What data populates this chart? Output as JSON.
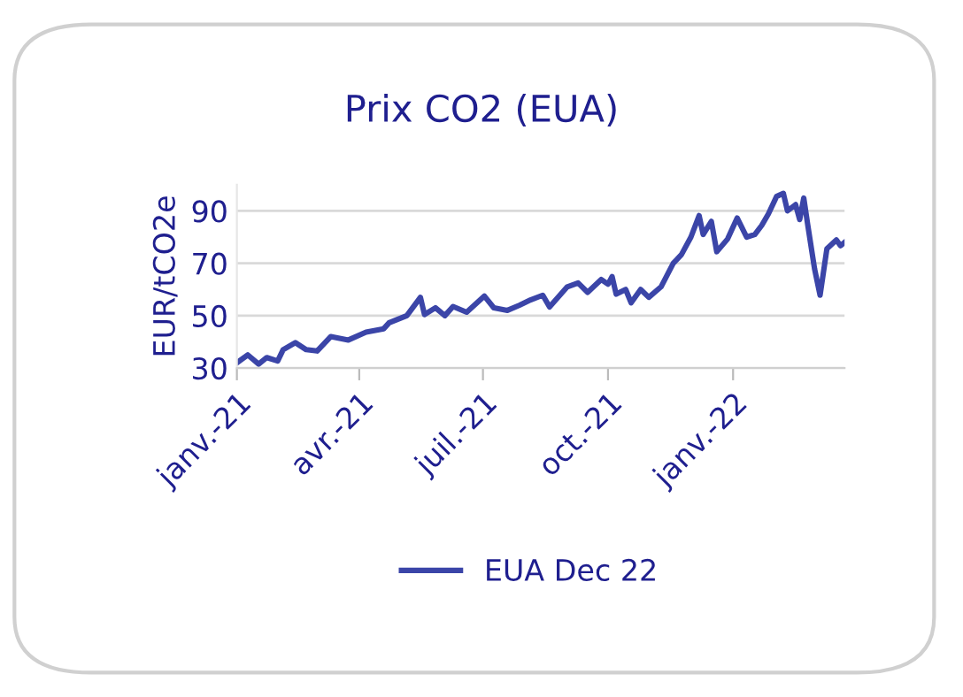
{
  "chart_data": {
    "type": "line",
    "title": "Prix CO2 (EUA)",
    "ylabel": "EUR/tCO2e",
    "x": [
      "2021-01-01",
      "2021-01-09",
      "2021-01-17",
      "2021-01-23",
      "2021-01-31",
      "2021-02-04",
      "2021-02-13",
      "2021-02-21",
      "2021-03-01",
      "2021-03-11",
      "2021-03-24",
      "2021-04-06",
      "2021-04-19",
      "2021-04-23",
      "2021-05-06",
      "2021-05-13",
      "2021-05-16",
      "2021-05-19",
      "2021-05-27",
      "2021-06-03",
      "2021-06-09",
      "2021-06-19",
      "2021-07-02",
      "2021-07-09",
      "2021-07-19",
      "2021-07-28",
      "2021-08-05",
      "2021-08-14",
      "2021-08-19",
      "2021-09-01",
      "2021-09-09",
      "2021-09-16",
      "2021-09-26",
      "2021-10-01",
      "2021-10-04",
      "2021-10-07",
      "2021-10-14",
      "2021-10-18",
      "2021-10-25",
      "2021-10-31",
      "2021-11-09",
      "2021-11-18",
      "2021-11-24",
      "2021-12-01",
      "2021-12-07",
      "2021-12-10",
      "2021-12-16",
      "2021-12-20",
      "2021-12-28",
      "2022-01-04",
      "2022-01-11",
      "2022-01-17",
      "2022-01-22",
      "2022-01-27",
      "2022-02-02",
      "2022-02-07",
      "2022-02-10",
      "2022-02-16",
      "2022-02-19",
      "2022-02-22",
      "2022-02-25",
      "2022-03-02",
      "2022-03-06",
      "2022-03-11",
      "2022-03-18",
      "2022-03-21",
      "2022-03-24"
    ],
    "series": [
      {
        "name": "EUA Dec 22",
        "color": "#3b45a8",
        "values": [
          32,
          35,
          31.5,
          34,
          32.7,
          37,
          39.7,
          37,
          36.5,
          42,
          40.7,
          43.7,
          45,
          47.3,
          50,
          54.9,
          57,
          50.4,
          53,
          50,
          53.5,
          51.3,
          57.5,
          53,
          52,
          54,
          56,
          57.8,
          53.3,
          61,
          62.5,
          58.9,
          63.8,
          62,
          64.9,
          58.2,
          60,
          54.9,
          60,
          57,
          61,
          70,
          73.3,
          80,
          88.2,
          81,
          86,
          74.4,
          79.3,
          87.3,
          80,
          81,
          84.4,
          88.9,
          95.5,
          96.7,
          90,
          92.4,
          86.7,
          94.9,
          84.4,
          67.7,
          57.8,
          75.5,
          78.9,
          76.7,
          78
        ]
      }
    ],
    "xlim": [
      "2021-01-01",
      "2022-03-24"
    ],
    "xticks": [
      {
        "value": "2021-01-01",
        "label": "janv.-21"
      },
      {
        "value": "2021-04-01",
        "label": "avr.-21"
      },
      {
        "value": "2021-07-01",
        "label": "juil.-21"
      },
      {
        "value": "2021-10-01",
        "label": "oct.-21"
      },
      {
        "value": "2022-01-01",
        "label": "janv.-22"
      }
    ],
    "ylim": [
      30,
      100
    ],
    "yticks": [
      30,
      50,
      70,
      90
    ],
    "grid": "y",
    "legend": "bottom",
    "marker": "none",
    "line_style": "solid"
  }
}
